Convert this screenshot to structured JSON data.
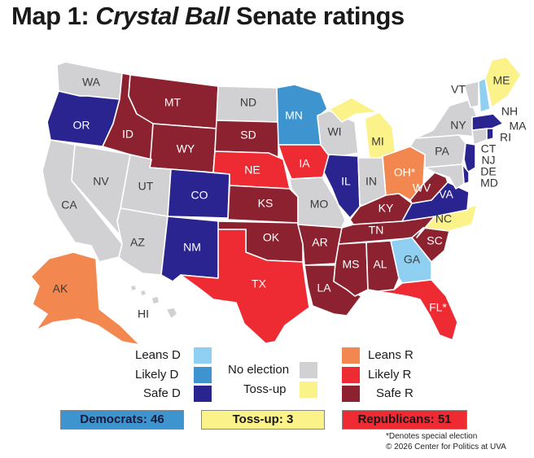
{
  "title": {
    "prefix": "Map 1:",
    "italic": "Crystal Ball",
    "suffix": "Senate ratings"
  },
  "colors": {
    "safe_d": "#29248f",
    "likely_d": "#3d94cf",
    "leans_d": "#8fd0f2",
    "toss_up": "#fbf28a",
    "leans_r": "#f2874f",
    "likely_r": "#ee2a33",
    "safe_r": "#8c2230",
    "no_election": "#d1d1d3"
  },
  "states": {
    "WA": "no_election",
    "OR": "safe_d",
    "CA": "no_election",
    "NV": "no_election",
    "ID": "safe_r",
    "MT": "safe_r",
    "WY": "safe_r",
    "UT": "no_election",
    "AZ": "no_election",
    "CO": "safe_d",
    "NM": "safe_d",
    "ND": "no_election",
    "SD": "safe_r",
    "NE": "likely_r",
    "KS": "safe_r",
    "OK": "safe_r",
    "TX": "likely_r",
    "MN": "likely_d",
    "IA": "likely_r",
    "MO": "no_election",
    "AR": "safe_r",
    "LA": "safe_r",
    "WI": "no_election",
    "IL": "safe_d",
    "MI": "toss_up",
    "IN": "no_election",
    "OH": "leans_r",
    "KY": "safe_r",
    "TN": "safe_r",
    "MS": "safe_r",
    "AL": "safe_r",
    "GA": "leans_d",
    "FL": "likely_r",
    "SC": "safe_r",
    "NC": "toss_up",
    "VA": "safe_d",
    "WV": "safe_r",
    "PA": "no_election",
    "NY": "no_election",
    "VT": "no_election",
    "NH": "leans_d",
    "ME": "toss_up",
    "MA": "safe_d",
    "RI": "safe_d",
    "CT": "no_election",
    "NJ": "safe_d",
    "DE": "safe_d",
    "MD": "no_election",
    "AK": "leans_r",
    "HI": "no_election"
  },
  "state_labels": {
    "WA": "WA",
    "OR": "OR",
    "CA": "CA",
    "NV": "NV",
    "ID": "ID",
    "MT": "MT",
    "WY": "WY",
    "UT": "UT",
    "AZ": "AZ",
    "CO": "CO",
    "NM": "NM",
    "ND": "ND",
    "SD": "SD",
    "NE": "NE",
    "KS": "KS",
    "OK": "OK",
    "TX": "TX",
    "MN": "MN",
    "IA": "IA",
    "MO": "MO",
    "AR": "AR",
    "LA": "LA",
    "WI": "WI",
    "IL": "IL",
    "MI": "MI",
    "IN": "IN",
    "OH": "OH*",
    "KY": "KY",
    "TN": "TN",
    "MS": "MS",
    "AL": "AL",
    "GA": "GA",
    "FL": "FL*",
    "SC": "SC",
    "NC": "NC",
    "VA": "VA",
    "WV": "WV",
    "PA": "PA",
    "NY": "NY",
    "VT": "VT",
    "NH": "NH",
    "ME": "ME",
    "MA": "MA",
    "RI": "RI",
    "CT": "CT",
    "NJ": "NJ",
    "DE": "DE",
    "MD": "MD",
    "AK": "AK",
    "HI": "HI"
  },
  "legend": {
    "leans_d": "Leans D",
    "likely_d": "Likely D",
    "safe_d": "Safe D",
    "no_election": "No election",
    "toss_up": "Toss-up",
    "leans_r": "Leans R",
    "likely_r": "Likely R",
    "safe_r": "Safe R"
  },
  "totals": {
    "dem": "Democrats: 46",
    "toss": "Toss-up: 3",
    "rep": "Republicans: 51"
  },
  "footnote": {
    "line1": "*Denotes special election",
    "line2": "© 2026 Center for Politics at UVA"
  }
}
